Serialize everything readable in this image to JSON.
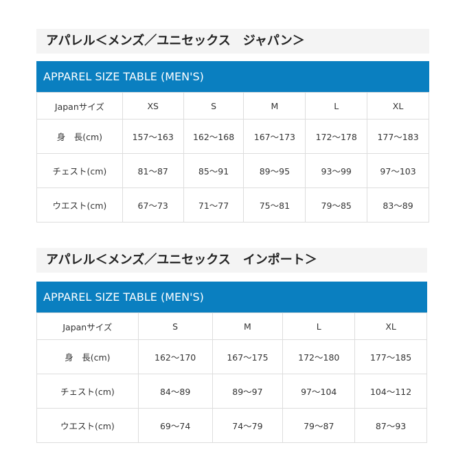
{
  "tables": [
    {
      "title": "アパレル＜メンズ／ユニセックス　ジャパン＞",
      "banner": "APPAREL SIZE TABLE (MEN'S)",
      "header": [
        "Japanサイズ",
        "XS",
        "S",
        "M",
        "L",
        "XL"
      ],
      "rows": [
        [
          "身　長(cm)",
          "157～163",
          "162～168",
          "167～173",
          "172～178",
          "177～183"
        ],
        [
          "チェスト(cm)",
          "81～87",
          "85～91",
          "89～95",
          "93～99",
          "97～103"
        ],
        [
          "ウエスト(cm)",
          "67～73",
          "71～77",
          "75～81",
          "79～85",
          "83～89"
        ]
      ]
    },
    {
      "title": "アパレル＜メンズ／ユニセックス　インポート＞",
      "banner": "APPAREL SIZE TABLE (MEN'S)",
      "header": [
        "Japanサイズ",
        "S",
        "M",
        "L",
        "XL"
      ],
      "rows": [
        [
          "身　長(cm)",
          "162～170",
          "167～175",
          "172～180",
          "177～185"
        ],
        [
          "チェスト(cm)",
          "84～89",
          "89～97",
          "97～104",
          "104～112"
        ],
        [
          "ウエスト(cm)",
          "69～74",
          "74～79",
          "79～87",
          "87～93"
        ]
      ]
    }
  ],
  "colors": {
    "banner": "#0a7fc0",
    "title_bg": "#f4f4f4"
  }
}
